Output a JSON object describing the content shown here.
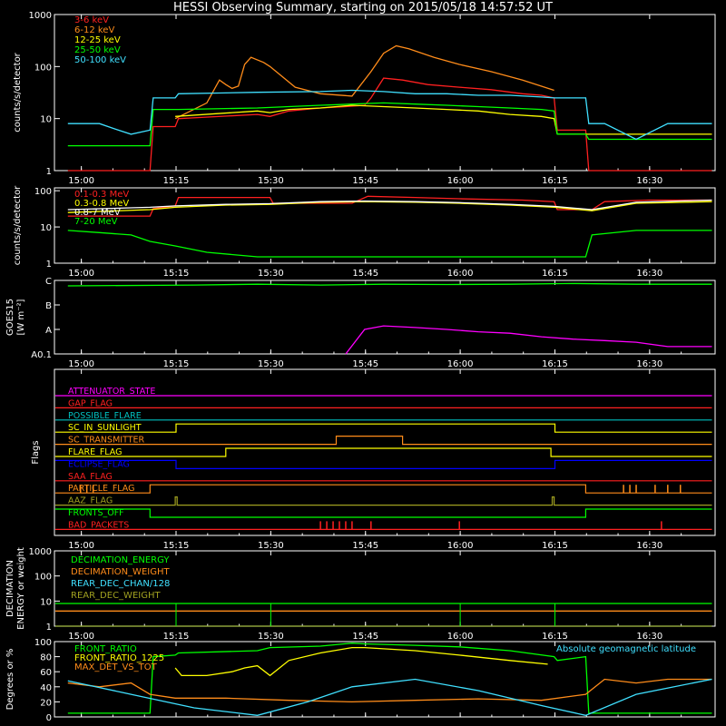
{
  "title": "HESSI Observing Summary, starting on 2015/05/18 14:57:52 UT",
  "time_axis": {
    "range_min": [
      -2.13,
      102.5
    ],
    "ticks": [
      {
        "min": 2.13,
        "label": "15:00"
      },
      {
        "min": 17.13,
        "label": "15:15"
      },
      {
        "min": 32.13,
        "label": "15:30"
      },
      {
        "min": 47.13,
        "label": "15:45"
      },
      {
        "min": 62.13,
        "label": "16:00"
      },
      {
        "min": 77.13,
        "label": "16:15"
      },
      {
        "min": 92.13,
        "label": "16:30"
      }
    ]
  },
  "colors": {
    "white": "#ffffff",
    "red": "#ff2020",
    "orange": "#ff8c1a",
    "yellow": "#ffff00",
    "green": "#00ff00",
    "cyan": "#40e0ff",
    "magenta": "#ff00ff",
    "blue": "#0000ff",
    "olive": "#a0a020",
    "teal": "#00c0c0"
  },
  "chart_data": [
    {
      "id": "hxr",
      "type": "line",
      "ylabel": "counts/s/detector",
      "yscale": "log",
      "ylim": [
        1,
        1000
      ],
      "yticks": [
        "1",
        "10",
        "100",
        "1000"
      ],
      "series": [
        {
          "name": "3-6 keV",
          "color": "red",
          "x": [
            0,
            13,
            13.5,
            17,
            17.5,
            30,
            32,
            35,
            40,
            44,
            47,
            48,
            50,
            53,
            57,
            62,
            67,
            72,
            75,
            77,
            77.5,
            82,
            82.5,
            102
          ],
          "y": [
            0,
            0,
            7,
            7,
            10,
            12,
            11,
            14,
            16,
            17,
            18,
            25,
            60,
            55,
            45,
            40,
            36,
            30,
            28,
            25,
            6,
            6,
            0,
            0
          ]
        },
        {
          "name": "6-12 keV",
          "color": "orange",
          "x": [
            17,
            22,
            24,
            25,
            26,
            27,
            28,
            29,
            31,
            32,
            36,
            40,
            45,
            48,
            50,
            52,
            54,
            58,
            62,
            67,
            72,
            77
          ],
          "y": [
            10,
            20,
            55,
            45,
            38,
            42,
            110,
            150,
            120,
            100,
            40,
            30,
            27,
            80,
            180,
            250,
            220,
            150,
            110,
            80,
            55,
            35
          ]
        },
        {
          "name": "12-25 keV",
          "color": "yellow",
          "x": [
            17,
            30,
            32,
            35,
            40,
            45,
            50,
            55,
            60,
            65,
            70,
            75,
            77,
            77.5,
            82,
            82.5,
            90,
            102
          ],
          "y": [
            11,
            14,
            13,
            15,
            16,
            18,
            17,
            16,
            15,
            14,
            12,
            11,
            10,
            5,
            5,
            5,
            5,
            5
          ]
        },
        {
          "name": "25-50 keV",
          "color": "green",
          "x": [
            0,
            13,
            13.5,
            17,
            17.5,
            30,
            35,
            40,
            45,
            50,
            55,
            60,
            65,
            70,
            75,
            77,
            77.5,
            82,
            82.5,
            102
          ],
          "y": [
            3,
            3,
            15,
            15,
            15,
            16,
            17,
            18,
            19,
            20,
            19,
            18,
            17,
            16,
            15,
            14,
            5,
            5,
            4,
            4
          ]
        },
        {
          "name": "50-100 keV",
          "color": "cyan",
          "x": [
            0,
            5,
            8,
            10,
            13,
            13.5,
            17,
            17.5,
            30,
            40,
            45,
            50,
            55,
            60,
            65,
            70,
            75,
            77,
            82,
            82.5,
            85,
            90,
            95,
            102
          ],
          "y": [
            8,
            8,
            6,
            5,
            6,
            25,
            25,
            30,
            32,
            33,
            35,
            33,
            30,
            30,
            28,
            28,
            26,
            25,
            25,
            8,
            8,
            4,
            8,
            8
          ]
        }
      ]
    },
    {
      "id": "gxr",
      "type": "line",
      "ylabel": "counts/s/detector",
      "yscale": "log",
      "ylim": [
        1,
        120
      ],
      "yticks": [
        "1",
        "10",
        "100"
      ],
      "series": [
        {
          "name": "0.1-0.3 MeV",
          "color": "red",
          "x": [
            0,
            13,
            13.5,
            17,
            17.5,
            32,
            32.5,
            45,
            47.5,
            55,
            62,
            72,
            77,
            77.5,
            83,
            85,
            92,
            102
          ],
          "y": [
            20,
            20,
            32,
            38,
            65,
            65,
            45,
            45,
            70,
            65,
            60,
            55,
            50,
            30,
            30,
            50,
            55,
            55
          ]
        },
        {
          "name": "0.3-0.8 MeV",
          "color": "yellow",
          "x": [
            0,
            13,
            17,
            25,
            32,
            40,
            47,
            55,
            62,
            70,
            77,
            83,
            90,
            102
          ],
          "y": [
            25,
            30,
            35,
            40,
            42,
            48,
            50,
            48,
            45,
            40,
            35,
            28,
            45,
            50
          ]
        },
        {
          "name": "0.8-7 MeV",
          "color": "white",
          "x": [
            0,
            13,
            17,
            25,
            32,
            40,
            47,
            55,
            62,
            70,
            77,
            83,
            90,
            102
          ],
          "y": [
            30,
            35,
            38,
            42,
            44,
            50,
            52,
            50,
            47,
            42,
            37,
            30,
            48,
            55
          ]
        },
        {
          "name": "7-20 MeV",
          "color": "green",
          "x": [
            0,
            5,
            10,
            13,
            17,
            22,
            30,
            40,
            50,
            60,
            70,
            77,
            82,
            83,
            90,
            102
          ],
          "y": [
            8,
            7,
            6,
            4,
            3,
            2,
            1.5,
            1.5,
            1.5,
            1.5,
            1.5,
            1.5,
            1.5,
            6,
            8,
            8
          ]
        }
      ]
    },
    {
      "id": "goes",
      "type": "line",
      "ylabel": "GOES15",
      "ylabel_unit": "[W m⁻²]",
      "yscale": "log",
      "ylim": [
        1e-08,
        1e-05
      ],
      "yticks": [
        "A0.1",
        "A",
        "B",
        "C"
      ],
      "series": [
        {
          "name": "GOES green",
          "color": "green",
          "x": [
            0,
            20,
            30,
            40,
            50,
            60,
            70,
            80,
            90,
            102
          ],
          "y": [
            6e-06,
            6.5e-06,
            7e-06,
            6.5e-06,
            7e-06,
            6.8e-06,
            7e-06,
            7.5e-06,
            7e-06,
            7e-06
          ]
        },
        {
          "name": "GOES magenta",
          "color": "magenta",
          "x": [
            44,
            47,
            50,
            55,
            60,
            65,
            70,
            75,
            80,
            85,
            90,
            95,
            102
          ],
          "y": [
            1e-08,
            1e-07,
            1.4e-07,
            1.2e-07,
            1e-07,
            8e-08,
            7e-08,
            5e-08,
            4e-08,
            3.5e-08,
            3e-08,
            2e-08,
            2e-08
          ]
        }
      ]
    },
    {
      "id": "flags",
      "type": "line",
      "ylabel": "Flags",
      "series": [
        {
          "name": "ATTENUATOR_STATE",
          "color": "magenta",
          "x": [
            -2,
            102
          ],
          "y": [
            0,
            0
          ]
        },
        {
          "name": "GAP_FLAG",
          "color": "red",
          "x": [
            -2,
            102
          ],
          "y": [
            0,
            0
          ]
        },
        {
          "name": "POSSIBLE_FLARE",
          "color": "teal",
          "x": [
            -2,
            102
          ],
          "y": [
            0,
            0
          ]
        },
        {
          "name": "SC_IN_SUNLIGHT",
          "color": "yellow",
          "x": [
            -2,
            17.13,
            17.13,
            77.13,
            77.13,
            102
          ],
          "y": [
            0,
            0,
            1,
            1,
            0,
            0
          ]
        },
        {
          "name": "SC_TRANSMITTER",
          "color": "orange",
          "x": [
            -2,
            42.5,
            42.5,
            53,
            53,
            102
          ],
          "y": [
            0,
            0,
            1,
            1,
            0,
            0
          ]
        },
        {
          "name": "FLARE_FLAG",
          "color": "yellow",
          "x": [
            -2,
            25,
            25,
            76.5,
            76.5,
            102
          ],
          "y": [
            0,
            0,
            1,
            1,
            0,
            0
          ]
        },
        {
          "name": "ECLIPSE_FLAG",
          "color": "blue",
          "x": [
            -2,
            17.13,
            17.13,
            77.13,
            77.13,
            102
          ],
          "y": [
            1,
            1,
            0,
            0,
            1,
            1
          ]
        },
        {
          "name": "SAA_FLAG",
          "color": "red",
          "x": [
            -2,
            102
          ],
          "y": [
            0,
            0
          ]
        },
        {
          "name": "PARTICLE_FLAG",
          "color": "orange",
          "x": [
            -2,
            13,
            13,
            82,
            82,
            102
          ],
          "y": [
            0,
            0,
            1,
            1,
            0,
            0
          ]
        },
        {
          "name": "AAZ_FLAG",
          "color": "olive",
          "x": [
            -2,
            17,
            17,
            17.3,
            17.3,
            76.7,
            76.7,
            77,
            77,
            102
          ],
          "y": [
            0,
            0,
            1,
            1,
            0,
            0,
            1,
            1,
            0,
            0
          ]
        },
        {
          "name": "FRONTS_OFF",
          "color": "green",
          "x": [
            -2,
            13,
            13,
            82,
            82,
            102
          ],
          "y": [
            1,
            1,
            0,
            0,
            1,
            1
          ]
        },
        {
          "name": "BAD_PACKETS",
          "color": "red",
          "x": [
            -2,
            102
          ],
          "y": [
            0,
            0
          ]
        }
      ],
      "spikes": {
        "PARTICLE_FLAG": [
          2,
          3,
          4,
          88,
          89,
          90,
          93,
          95,
          97
        ],
        "BAD_PACKETS": [
          40,
          41,
          42,
          43,
          44,
          45,
          48,
          62,
          94
        ]
      }
    },
    {
      "id": "decim",
      "type": "line",
      "ylabel": "DECIMATION ENERGY or weight",
      "yscale": "log",
      "ylim": [
        1,
        1000
      ],
      "yticks": [
        "1",
        "10",
        "100",
        "1000"
      ],
      "series": [
        {
          "name": "DECIMATION_ENERGY",
          "color": "green",
          "x": [
            -2,
            17.13,
            17.13,
            32.13,
            32.13,
            62.13,
            62.13,
            77.13,
            77.13,
            102
          ],
          "y": [
            8,
            8,
            8,
            8,
            8,
            8,
            8,
            8,
            8,
            8
          ]
        },
        {
          "name": "DECIMATION_WEIGHT",
          "color": "orange",
          "x": [
            -2,
            17.13,
            17.13,
            32.13,
            32.13,
            62.13,
            62.13,
            77.13,
            77.13,
            102
          ],
          "y": [
            4,
            4,
            4,
            4,
            4,
            4,
            4,
            4,
            4,
            4
          ]
        },
        {
          "name": "REAR_DEC_CHAN/128",
          "color": "cyan",
          "x": [
            -2,
            102
          ],
          "y": [
            1,
            1
          ]
        },
        {
          "name": "REAR_DEC_WEIGHT",
          "color": "olive",
          "x": [
            -2,
            102
          ],
          "y": [
            1,
            1
          ]
        }
      ]
    },
    {
      "id": "ratio",
      "type": "line",
      "ylabel": "Degrees or %",
      "ylim": [
        0,
        100
      ],
      "yticks": [
        "0",
        "20",
        "40",
        "60",
        "80",
        "100"
      ],
      "right_label": "Absolute geomagnetic latitude",
      "series": [
        {
          "name": "FRONT_RATIO",
          "color": "green",
          "x": [
            0,
            13,
            13.5,
            17,
            17.5,
            30,
            32,
            40,
            45,
            47,
            55,
            62,
            70,
            77,
            77.5,
            82,
            82.5,
            102
          ],
          "y": [
            5,
            5,
            80,
            82,
            85,
            88,
            92,
            94,
            98,
            97,
            95,
            93,
            88,
            80,
            75,
            80,
            5,
            5
          ]
        },
        {
          "name": "FRONT_RATIO_1225",
          "color": "yellow",
          "x": [
            17,
            18,
            22,
            26,
            28,
            30,
            32,
            35,
            40,
            45,
            47,
            55,
            62,
            70,
            76
          ],
          "y": [
            65,
            55,
            55,
            60,
            65,
            68,
            55,
            75,
            85,
            92,
            92,
            88,
            82,
            75,
            70
          ]
        },
        {
          "name": "MAX_DET_VS_TOT",
          "color": "orange",
          "x": [
            0,
            5,
            10,
            13,
            17,
            25,
            35,
            45,
            55,
            65,
            75,
            82,
            85,
            90,
            95,
            102
          ],
          "y": [
            45,
            40,
            45,
            30,
            25,
            25,
            22,
            20,
            22,
            24,
            22,
            30,
            50,
            45,
            50,
            50
          ]
        },
        {
          "name": "Absolute geomagnetic latitude",
          "color": "cyan",
          "x": [
            0,
            10,
            20,
            30,
            38,
            45,
            55,
            65,
            75,
            82,
            90,
            102
          ],
          "y": [
            48,
            30,
            12,
            2,
            20,
            40,
            50,
            35,
            15,
            2,
            30,
            50
          ]
        }
      ]
    }
  ]
}
